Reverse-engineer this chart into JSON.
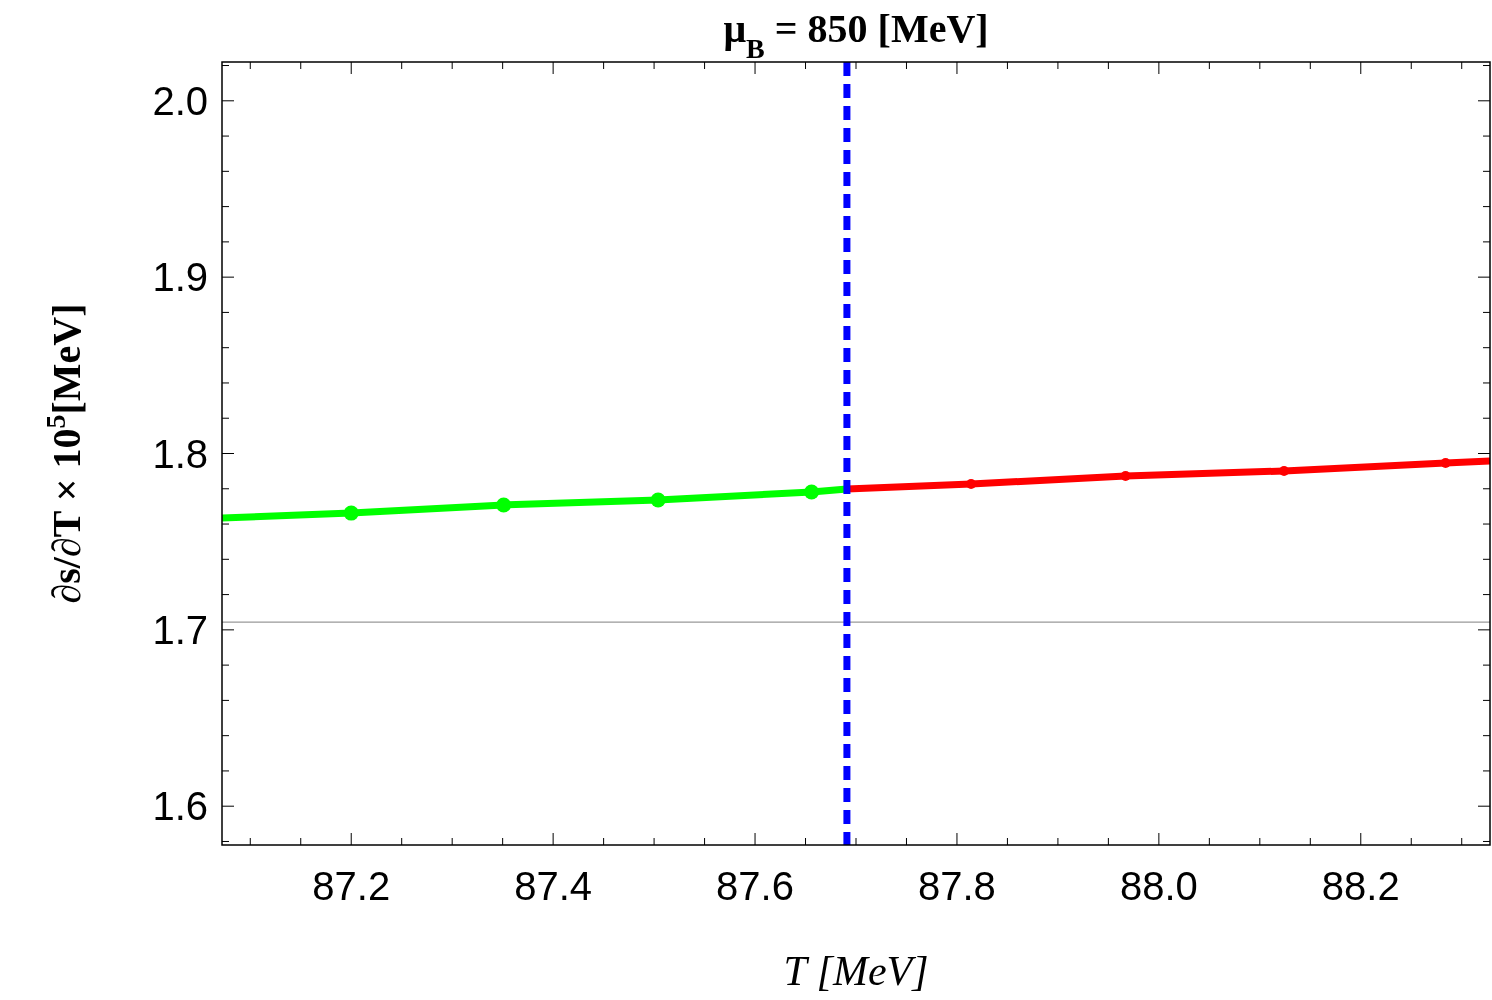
{
  "chart_data": {
    "type": "line",
    "title": "μ$_{B}$ = 850 [MeV]",
    "xlabel": "T [MeV]",
    "ylabel": "∂s/∂T × 10$^{5}$[MeV]",
    "xlim": [
      87.072,
      88.328
    ],
    "ylim": [
      1.578,
      2.022
    ],
    "xticks": [
      {
        "value": 87.1,
        "label": null
      },
      {
        "value": 87.15,
        "label": null
      },
      {
        "value": 87.2,
        "label": "87.2"
      },
      {
        "value": 87.25,
        "label": null
      },
      {
        "value": 87.3,
        "label": null
      },
      {
        "value": 87.35,
        "label": null
      },
      {
        "value": 87.4,
        "label": "87.4"
      },
      {
        "value": 87.45,
        "label": null
      },
      {
        "value": 87.5,
        "label": null
      },
      {
        "value": 87.55,
        "label": null
      },
      {
        "value": 87.6,
        "label": "87.6"
      },
      {
        "value": 87.65,
        "label": null
      },
      {
        "value": 87.7,
        "label": null
      },
      {
        "value": 87.75,
        "label": null
      },
      {
        "value": 87.8,
        "label": "87.8"
      },
      {
        "value": 87.85,
        "label": null
      },
      {
        "value": 87.9,
        "label": null
      },
      {
        "value": 87.95,
        "label": null
      },
      {
        "value": 88.0,
        "label": "88.0"
      },
      {
        "value": 88.05,
        "label": null
      },
      {
        "value": 88.1,
        "label": null
      },
      {
        "value": 88.15,
        "label": null
      },
      {
        "value": 88.2,
        "label": "88.2"
      },
      {
        "value": 88.25,
        "label": null
      },
      {
        "value": 88.3,
        "label": null
      }
    ],
    "yticks": [
      {
        "value": 1.58,
        "label": null
      },
      {
        "value": 1.6,
        "label": "1.6"
      },
      {
        "value": 1.62,
        "label": null
      },
      {
        "value": 1.64,
        "label": null
      },
      {
        "value": 1.66,
        "label": null
      },
      {
        "value": 1.68,
        "label": null
      },
      {
        "value": 1.7,
        "label": "1.7"
      },
      {
        "value": 1.72,
        "label": null
      },
      {
        "value": 1.74,
        "label": null
      },
      {
        "value": 1.76,
        "label": null
      },
      {
        "value": 1.78,
        "label": null
      },
      {
        "value": 1.8,
        "label": "1.8"
      },
      {
        "value": 1.82,
        "label": null
      },
      {
        "value": 1.84,
        "label": null
      },
      {
        "value": 1.86,
        "label": null
      },
      {
        "value": 1.88,
        "label": null
      },
      {
        "value": 1.9,
        "label": "1.9"
      },
      {
        "value": 1.92,
        "label": null
      },
      {
        "value": 1.94,
        "label": null
      },
      {
        "value": 1.96,
        "label": null
      },
      {
        "value": 1.98,
        "label": null
      },
      {
        "value": 2.0,
        "label": "2.0"
      },
      {
        "value": 2.02,
        "label": null
      }
    ],
    "grid": false,
    "series": [
      {
        "color": "#00ff00",
        "marker": "none",
        "x": [
          87.072,
          87.2,
          87.351,
          87.504,
          87.656,
          87.691
        ],
        "values": [
          1.7634,
          1.7662,
          1.7708,
          1.7736,
          1.7782,
          1.7799
        ]
      },
      {
        "color": "#ff0000",
        "marker": "none",
        "x": [
          87.691,
          87.814,
          87.967,
          88.124,
          88.284,
          88.328
        ],
        "values": [
          1.7799,
          1.7827,
          1.7872,
          1.7901,
          1.7946,
          1.7957
        ]
      },
      {
        "type": "scatter",
        "color": "#00ff00",
        "marker": "circle",
        "x": [
          87.2,
          87.351,
          87.504,
          87.656
        ],
        "values": [
          1.7662,
          1.7708,
          1.7736,
          1.7782
        ]
      },
      {
        "type": "scatter",
        "color": "#ff0000",
        "marker": "circle",
        "x": [
          87.814,
          87.967,
          88.124,
          88.284
        ],
        "values": [
          1.7827,
          1.7872,
          1.7901,
          1.7946
        ]
      }
    ],
    "ref_lines": [
      {
        "axis": "y",
        "value": 1.7044,
        "color": "#999999",
        "line_style": "solid"
      },
      {
        "axis": "x",
        "value": 87.691,
        "color": "#0000ff",
        "line_style": "dashed"
      }
    ]
  }
}
